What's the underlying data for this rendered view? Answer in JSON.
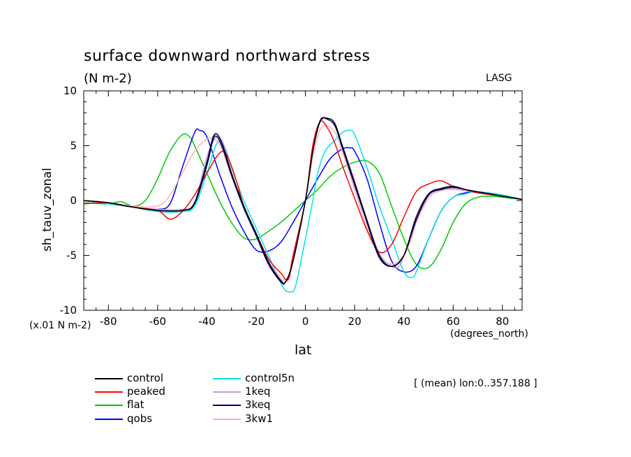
{
  "chart_data": {
    "type": "line",
    "title": "surface downward northward stress",
    "units": "(N m-2)",
    "org": "LASG",
    "ylabel": "sh_tauv_zonal",
    "xlabel": "lat",
    "x_units": "(degrees_north)",
    "scale_note": "(x.01 N m-2)",
    "mean_note": "[ (mean) lon:0..357.188 ]",
    "xlim": [
      -90,
      88
    ],
    "ylim": [
      -10,
      10
    ],
    "x_ticks": [
      -80,
      -60,
      -40,
      -20,
      0,
      20,
      40,
      60,
      80
    ],
    "x_tick_labels": [
      "-80",
      "-60",
      "-40",
      "-20",
      "0",
      "20",
      "40",
      "60",
      "80"
    ],
    "y_ticks": [
      -10,
      -5,
      0,
      5,
      10
    ],
    "y_tick_labels": [
      "-10",
      "-5",
      "0",
      "5",
      "10"
    ],
    "grid": false,
    "legend_position": "below",
    "series": [
      {
        "name": "control",
        "color": "#000000",
        "x": [
          -90,
          -80,
          -70,
          -60,
          -50,
          -45,
          -40,
          -37,
          -34,
          -30,
          -25,
          -20,
          -15,
          -10,
          -8,
          -5,
          0,
          3,
          6,
          9,
          12,
          15,
          20,
          25,
          30,
          35,
          40,
          45,
          50,
          55,
          60,
          65,
          70,
          80,
          88
        ],
        "y": [
          0,
          -0.2,
          -0.6,
          -0.9,
          -0.9,
          -0.2,
          3.5,
          6.0,
          5.3,
          2.5,
          -0.5,
          -3.0,
          -5.6,
          -7.3,
          -7.4,
          -5.5,
          0,
          4.5,
          7.2,
          7.5,
          7.0,
          5.0,
          1.6,
          -1.8,
          -5.0,
          -6.0,
          -5.0,
          -1.5,
          0.6,
          1.1,
          1.3,
          1.0,
          0.8,
          0.4,
          0.1
        ]
      },
      {
        "name": "peaked",
        "color": "#ff0000",
        "x": [
          -90,
          -80,
          -70,
          -60,
          -55,
          -50,
          -45,
          -40,
          -35,
          -32,
          -28,
          -25,
          -20,
          -15,
          -10,
          -7,
          -5,
          0,
          3,
          6,
          9,
          12,
          15,
          20,
          25,
          30,
          35,
          40,
          45,
          50,
          55,
          60,
          65,
          70,
          80,
          88
        ],
        "y": [
          -0.3,
          -0.2,
          -0.6,
          -0.9,
          -1.7,
          -1.0,
          0.5,
          2.5,
          4.3,
          4.2,
          1.8,
          -0.5,
          -3.0,
          -5.3,
          -6.6,
          -7.2,
          -5.0,
          0,
          5.0,
          7.2,
          6.6,
          5.2,
          3.2,
          0.2,
          -2.7,
          -4.7,
          -4.0,
          -1.5,
          0.8,
          1.5,
          1.8,
          1.3,
          1.0,
          0.7,
          0.4,
          0.1
        ]
      },
      {
        "name": "flat",
        "color": "#00cc00",
        "x": [
          -90,
          -80,
          -75,
          -70,
          -65,
          -60,
          -55,
          -50,
          -47,
          -45,
          -40,
          -35,
          -30,
          -25,
          -20,
          -15,
          -10,
          -5,
          0,
          5,
          10,
          15,
          20,
          25,
          30,
          35,
          40,
          45,
          50,
          55,
          60,
          65,
          70,
          75,
          80,
          88
        ],
        "y": [
          -0.2,
          -0.3,
          -0.1,
          -0.5,
          0,
          2.0,
          4.5,
          6.0,
          5.8,
          5.0,
          2.5,
          0,
          -2.0,
          -3.4,
          -3.5,
          -2.8,
          -2.0,
          -1.0,
          0,
          1.0,
          2.2,
          3.0,
          3.5,
          3.6,
          2.5,
          -0.5,
          -3.5,
          -5.8,
          -6.1,
          -4.5,
          -2.0,
          -0.3,
          0.3,
          0.4,
          0.3,
          0.1
        ]
      },
      {
        "name": "qobs",
        "color": "#0000ff",
        "x": [
          -90,
          -80,
          -70,
          -65,
          -60,
          -55,
          -50,
          -45,
          -43,
          -40,
          -35,
          -30,
          -25,
          -20,
          -15,
          -10,
          -5,
          0,
          5,
          10,
          15,
          18,
          20,
          25,
          30,
          35,
          40,
          45,
          50,
          55,
          60,
          65,
          70,
          80,
          88
        ],
        "y": [
          0,
          -0.3,
          -0.6,
          -0.8,
          -0.8,
          -0.3,
          3.0,
          6.2,
          6.4,
          5.8,
          2.5,
          -0.5,
          -2.8,
          -4.5,
          -4.6,
          -3.8,
          -2.0,
          0,
          2.0,
          3.8,
          4.7,
          4.8,
          4.5,
          2.0,
          -2.0,
          -5.5,
          -6.5,
          -6.0,
          -3.5,
          -1.0,
          0.3,
          0.7,
          0.8,
          0.5,
          0.1
        ]
      },
      {
        "name": "control5n",
        "color": "#00e5e5",
        "x": [
          -90,
          -80,
          -70,
          -60,
          -50,
          -45,
          -40,
          -36,
          -33,
          -30,
          -25,
          -20,
          -15,
          -10,
          -8,
          -6,
          -4,
          0,
          3,
          5,
          8,
          12,
          15,
          18,
          20,
          25,
          30,
          35,
          40,
          43,
          45,
          50,
          55,
          60,
          65,
          70,
          80,
          88
        ],
        "y": [
          0,
          -0.3,
          -0.6,
          -1.0,
          -1.0,
          -0.5,
          2.5,
          5.2,
          5.0,
          3.0,
          0,
          -2.5,
          -5.0,
          -7.5,
          -8.2,
          -8.3,
          -7.8,
          -3.5,
          0,
          2.5,
          4.5,
          5.5,
          6.2,
          6.4,
          6.0,
          3.0,
          -0.5,
          -3.5,
          -6.5,
          -7.0,
          -6.5,
          -3.5,
          -1.0,
          0.3,
          0.6,
          0.8,
          0.5,
          0.1
        ]
      },
      {
        "name": "1keq",
        "color": "#cc99ee",
        "x": [
          -90,
          -80,
          -70,
          -60,
          -50,
          -45,
          -40,
          -36,
          -33,
          -30,
          -25,
          -20,
          -15,
          -10,
          -7,
          -5,
          0,
          3,
          6,
          9,
          12,
          15,
          20,
          25,
          30,
          35,
          38,
          40,
          45,
          50,
          55,
          60,
          65,
          70,
          80,
          88
        ],
        "y": [
          0,
          -0.2,
          -0.6,
          -0.8,
          -0.8,
          -0.2,
          4.0,
          5.8,
          5.0,
          2.5,
          -0.5,
          -3.0,
          -5.5,
          -7.2,
          -7.2,
          -5.5,
          0,
          4.5,
          7.2,
          7.4,
          6.8,
          5.0,
          1.8,
          -1.8,
          -4.8,
          -6.0,
          -6.0,
          -5.0,
          -1.8,
          0.4,
          1.0,
          1.1,
          0.9,
          0.7,
          0.4,
          0.1
        ]
      },
      {
        "name": "3keq",
        "color": "#000080",
        "x": [
          -90,
          -80,
          -70,
          -60,
          -50,
          -45,
          -40,
          -37,
          -34,
          -30,
          -25,
          -20,
          -15,
          -10,
          -8,
          -5,
          0,
          3,
          6,
          9,
          12,
          15,
          20,
          25,
          30,
          35,
          40,
          45,
          50,
          55,
          60,
          65,
          70,
          80,
          88
        ],
        "y": [
          0,
          -0.2,
          -0.6,
          -0.9,
          -0.9,
          -0.3,
          3.2,
          5.8,
          5.0,
          2.3,
          -0.7,
          -3.2,
          -5.8,
          -7.4,
          -7.4,
          -5.5,
          0,
          4.5,
          7.3,
          7.4,
          6.8,
          4.8,
          1.4,
          -2.0,
          -5.2,
          -6.0,
          -5.0,
          -1.8,
          0.5,
          1.0,
          1.2,
          1.0,
          0.8,
          0.4,
          0.1
        ]
      },
      {
        "name": "3kw1",
        "color": "#ffb0b8",
        "x": [
          -90,
          -80,
          -70,
          -60,
          -55,
          -50,
          -45,
          -40,
          -37,
          -34,
          -30,
          -25,
          -20,
          -15,
          -10,
          -7,
          -5,
          0,
          3,
          6,
          9,
          12,
          15,
          20,
          25,
          30,
          35,
          40,
          43,
          45,
          50,
          55,
          60,
          65,
          70,
          80,
          88
        ],
        "y": [
          0,
          -0.2,
          -0.5,
          -0.5,
          0.5,
          2.5,
          4.5,
          5.6,
          5.6,
          4.8,
          2.2,
          -0.5,
          -3.0,
          -5.5,
          -7.0,
          -7.0,
          -5.0,
          0,
          4.0,
          6.5,
          6.8,
          6.2,
          4.5,
          1.0,
          -2.5,
          -5.0,
          -5.8,
          -5.0,
          -3.5,
          -2.0,
          0.2,
          0.9,
          1.0,
          0.9,
          0.7,
          0.4,
          0.1
        ]
      }
    ]
  },
  "legend": {
    "col1": [
      "control",
      "peaked",
      "flat",
      "qobs"
    ],
    "col2": [
      "control5n",
      "1keq",
      "3keq",
      "3kw1"
    ]
  }
}
